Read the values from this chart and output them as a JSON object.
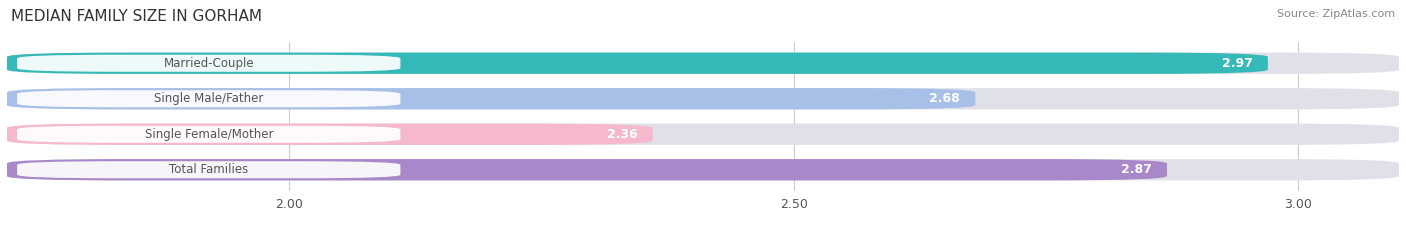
{
  "title": "MEDIAN FAMILY SIZE IN GORHAM",
  "source": "Source: ZipAtlas.com",
  "categories": [
    "Married-Couple",
    "Single Male/Father",
    "Single Female/Mother",
    "Total Families"
  ],
  "values": [
    2.97,
    2.68,
    2.36,
    2.87
  ],
  "bar_colors": [
    "#35b8b8",
    "#a8bfe8",
    "#f5b8cc",
    "#a888c8"
  ],
  "bar_bg_color": "#e0e0e8",
  "xlim_min": 1.72,
  "xlim_max": 3.1,
  "data_min": 2.0,
  "xticks": [
    2.0,
    2.5,
    3.0
  ],
  "xtick_labels": [
    "2.00",
    "2.50",
    "3.00"
  ],
  "bar_height": 0.6,
  "label_text_color": "#555555",
  "value_text_color": "#ffffff",
  "title_fontsize": 11,
  "source_fontsize": 8,
  "label_fontsize": 8.5,
  "value_fontsize": 9,
  "tick_fontsize": 9,
  "background_color": "#ffffff",
  "grid_color": "#cccccc"
}
